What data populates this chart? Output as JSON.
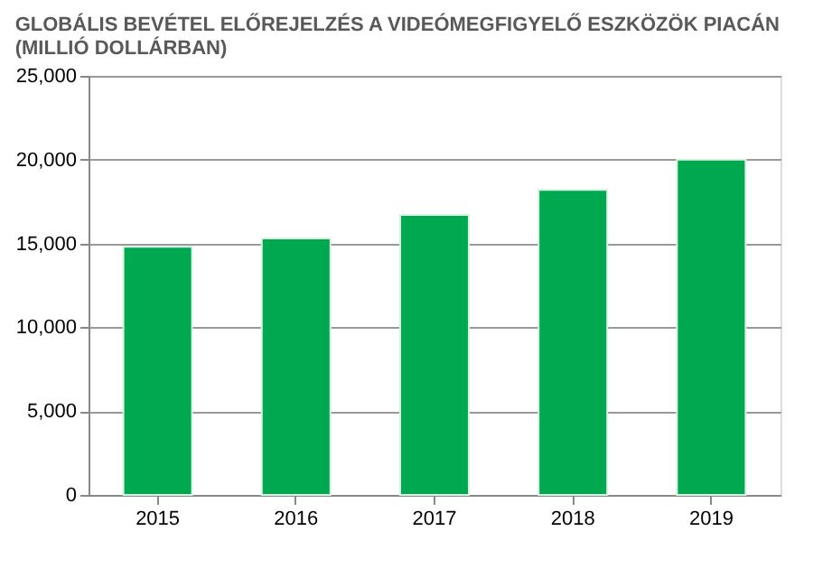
{
  "chart_data": {
    "type": "bar",
    "title": [
      "GLOBÁLIS BEVÉTEL ELŐREJELZÉS A VIDEÓMEGFIGYELŐ ESZKÖZÖK PIACÁN",
      "(MILLIÓ DOLLÁRBAN)"
    ],
    "categories": [
      "2015",
      "2016",
      "2017",
      "2018",
      "2019"
    ],
    "values": [
      14800,
      15300,
      16700,
      18200,
      20000
    ],
    "color": "#00a84f",
    "ylim": [
      0,
      25000
    ],
    "yticks": [
      0,
      {
        "value": 5000,
        "label": "5,000"
      },
      {
        "value": 10000,
        "label": "10,000"
      },
      {
        "value": 15000,
        "label": "15,000"
      },
      {
        "value": 20000,
        "label": "20,000"
      },
      {
        "value": 25000,
        "label": "25,000"
      }
    ],
    "grid": "y"
  }
}
